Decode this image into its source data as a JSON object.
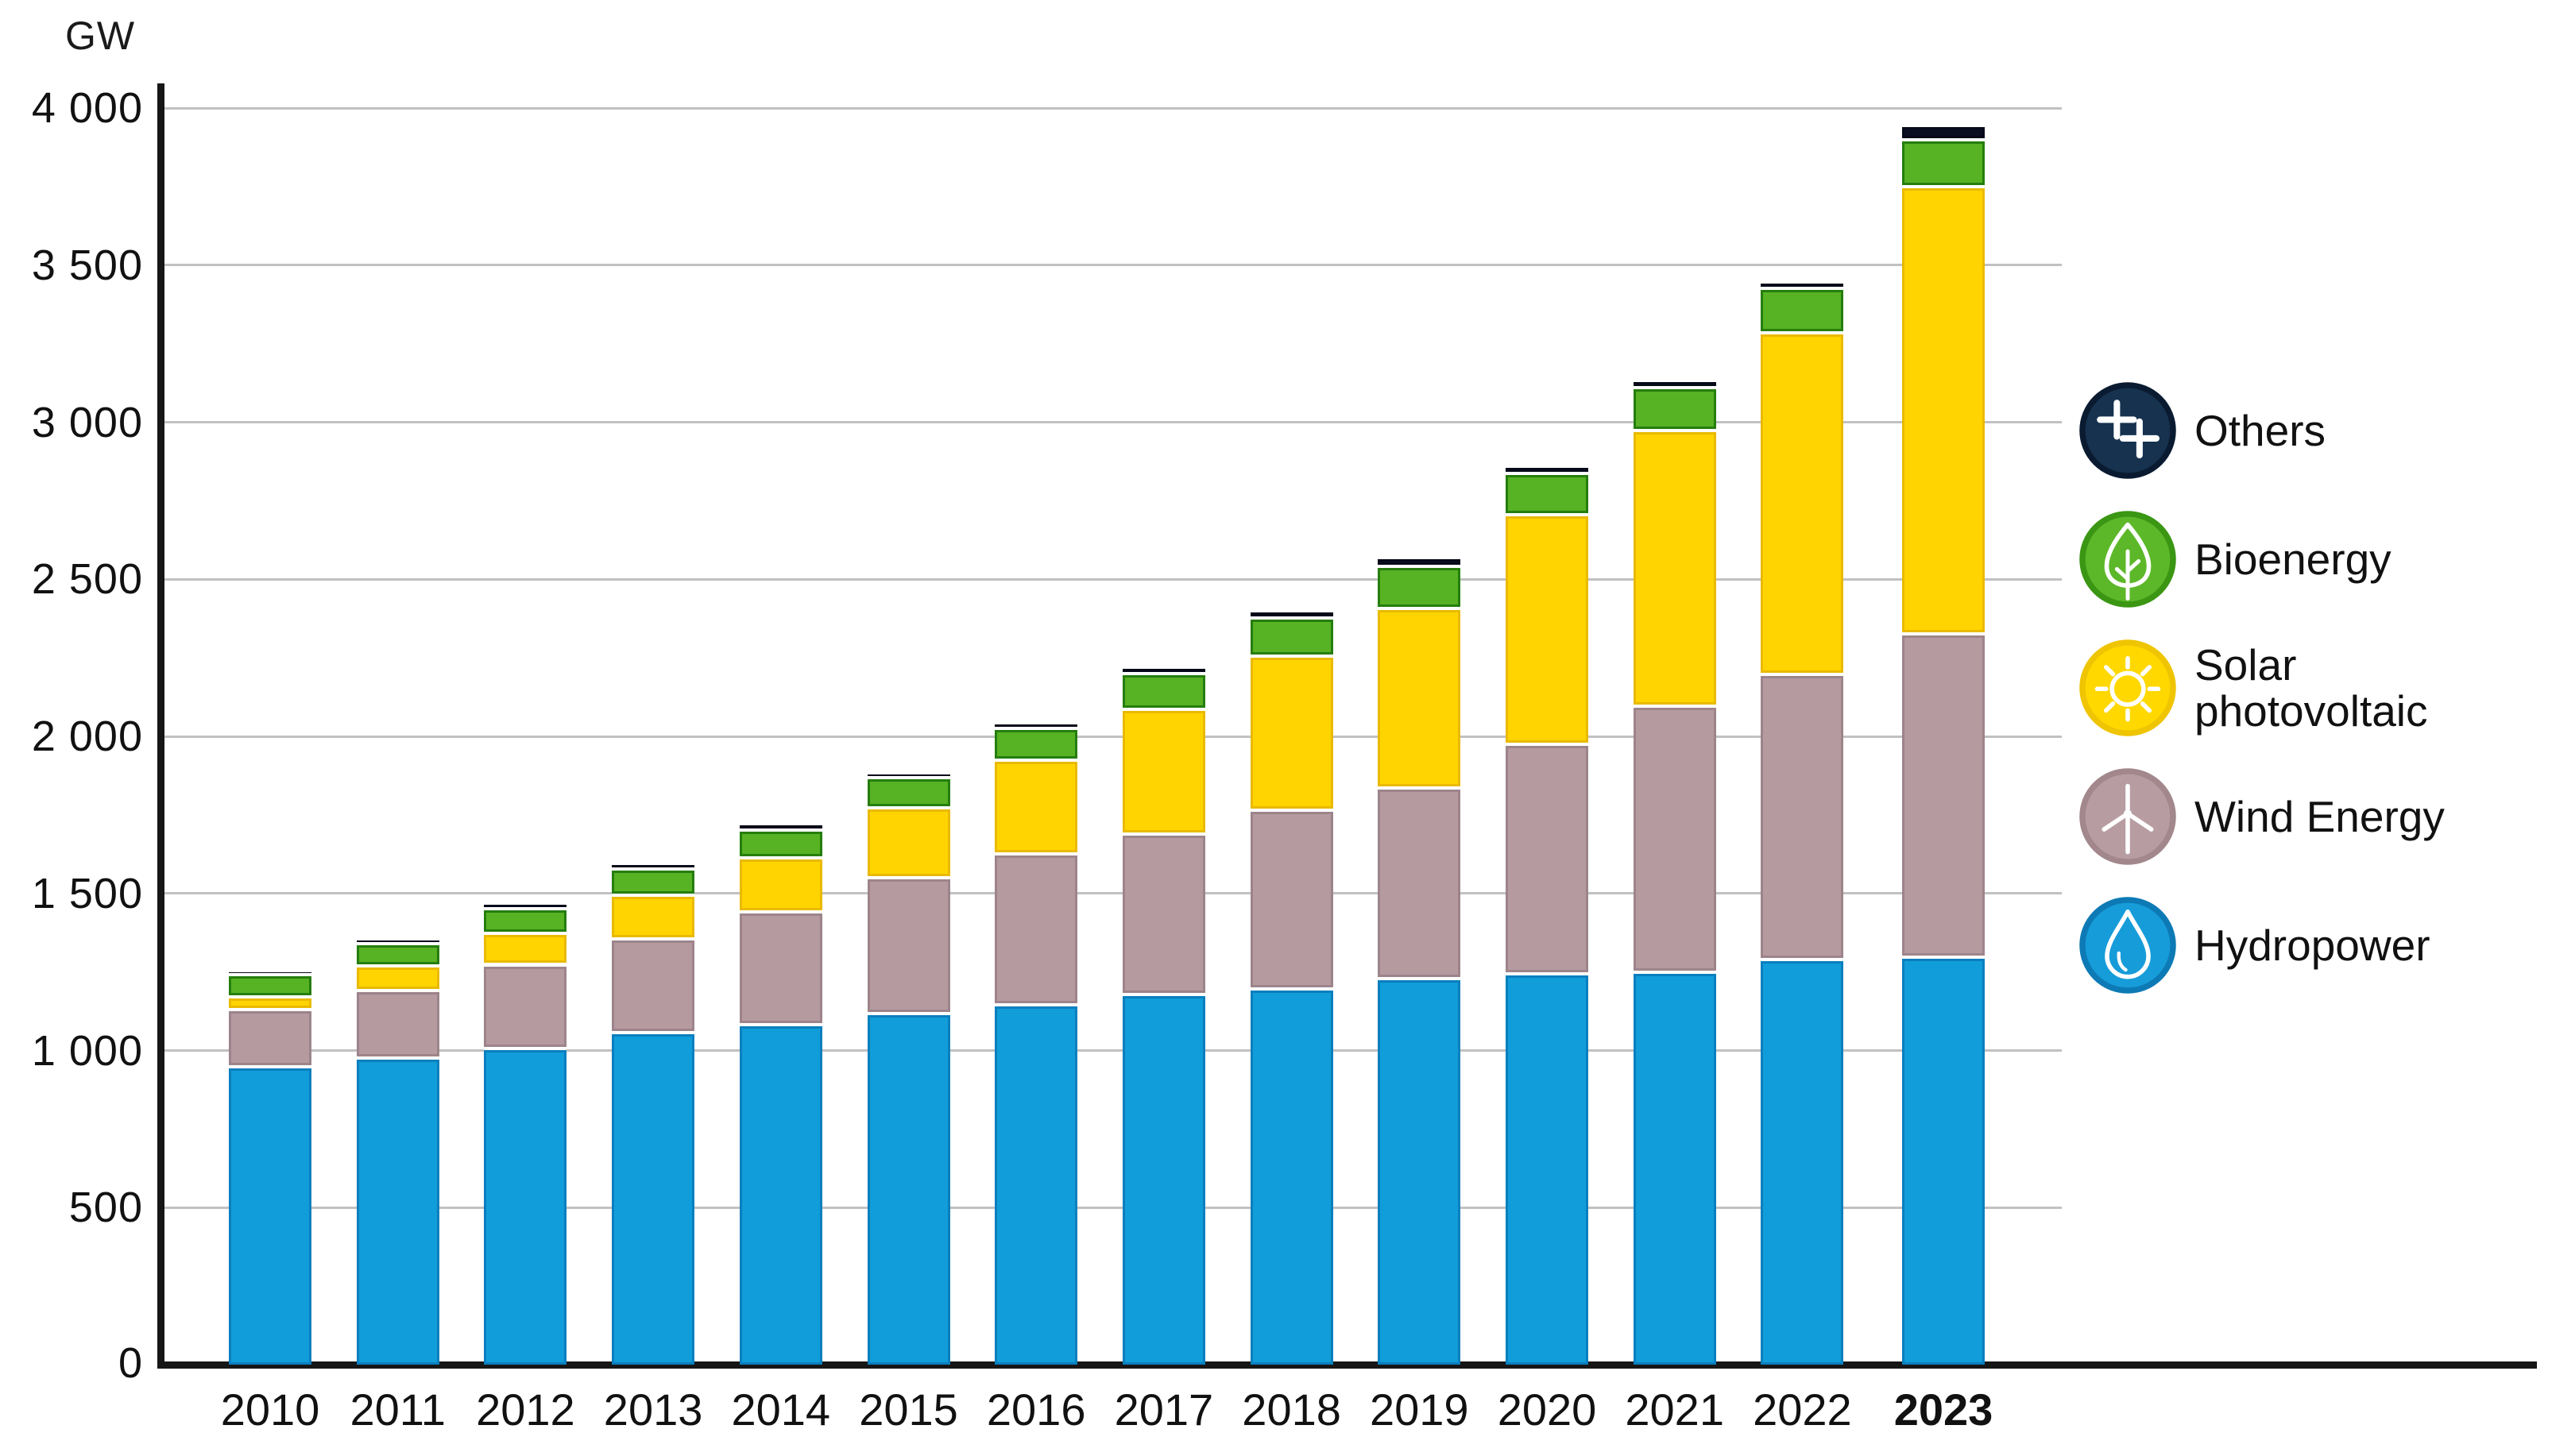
{
  "unit_label": "GW",
  "legend": [
    {
      "id": "others",
      "label": "Others",
      "color": "#16324f",
      "icon": "plus-plus-icon"
    },
    {
      "id": "bioenergy",
      "label": "Bioenergy",
      "color": "#5cb829",
      "icon": "leaf-icon"
    },
    {
      "id": "solar",
      "label": "Solar photovoltaic",
      "label_lines": [
        "Solar",
        "photovoltaic"
      ],
      "color": "#ffd800",
      "icon": "sun-icon"
    },
    {
      "id": "wind",
      "label": "Wind Energy",
      "color": "#b79da2",
      "icon": "wind-turbine-icon"
    },
    {
      "id": "hydro",
      "label": "Hydropower",
      "color": "#169cd9",
      "icon": "water-drop-icon"
    }
  ],
  "chart_data": {
    "type": "bar",
    "stacked": true,
    "title": "",
    "xlabel": "",
    "ylabel": "GW",
    "ylim": [
      0,
      4000
    ],
    "ytick_interval": 500,
    "ytick_labels": [
      "500",
      "1 000",
      "1 500",
      "2 000",
      "2 500",
      "3 000",
      "3 500",
      "4 000"
    ],
    "zero_label": "0",
    "grid": true,
    "legend_position": "right",
    "bold_category": "2023",
    "categories": [
      "2010",
      "2011",
      "2012",
      "2013",
      "2014",
      "2015",
      "2016",
      "2017",
      "2018",
      "2019",
      "2020",
      "2021",
      "2022",
      "2023"
    ],
    "series": [
      {
        "name": "Hydropower",
        "color": "#119dd9",
        "border": "#0a7fbe",
        "values": [
          944,
          972,
          1002,
          1053,
          1078,
          1113,
          1140,
          1172,
          1192,
          1224,
          1238,
          1245,
          1285,
          1293
        ]
      },
      {
        "name": "Wind Energy",
        "color": "#b59aa0",
        "border": "#9d848b",
        "values": [
          180,
          215,
          266,
          296,
          359,
          433,
          480,
          513,
          569,
          606,
          731,
          846,
          906,
          1027
        ]
      },
      {
        "name": "Solar photovoltaic",
        "color": "#ffd400",
        "border": "#e9ba00",
        "values": [
          42,
          76,
          101,
          139,
          172,
          221,
          299,
          397,
          489,
          571,
          731,
          877,
          1089,
          1425
        ]
      },
      {
        "name": "Bioenergy",
        "color": "#57b224",
        "border": "#257e0d",
        "values": [
          70,
          73,
          78,
          84,
          88,
          96,
          100,
          112,
          121,
          134,
          132,
          136,
          140,
          149
        ]
      },
      {
        "name": "Others",
        "color": "#0a0e20",
        "border": "#06091a",
        "values": [
          14,
          14,
          18,
          18,
          21,
          15,
          20,
          22,
          23,
          30,
          22,
          24,
          20,
          46
        ]
      }
    ],
    "totals": [
      1250,
      1350,
      1465,
      1590,
      1718,
      1878,
      2039,
      2216,
      2394,
      2565,
      2854,
      3128,
      3440,
      3940
    ]
  }
}
